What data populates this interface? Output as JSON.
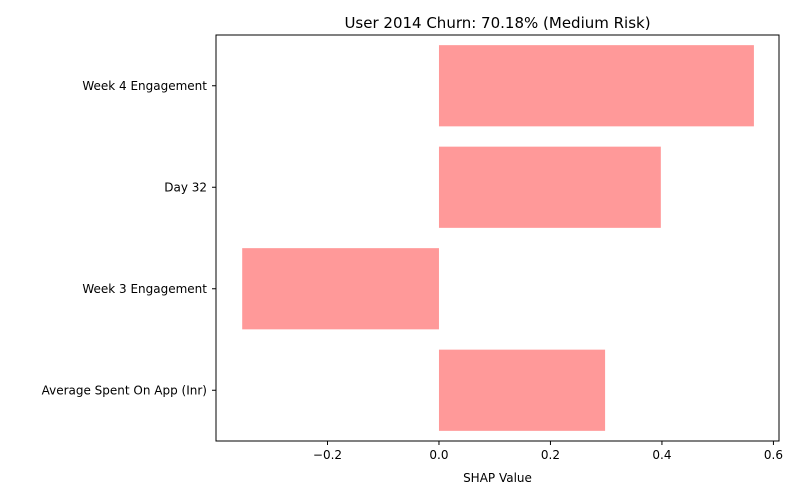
{
  "chart_data": {
    "type": "bar",
    "orientation": "horizontal",
    "title": "User 2014 Churn: 70.18% (Medium Risk)",
    "xlabel": "SHAP Value",
    "ylabel": "",
    "categories": [
      "Week 4 Engagement",
      "Day 32",
      "Week 3 Engagement",
      "Average Spent On App (Inr)"
    ],
    "values": [
      0.565,
      0.398,
      -0.353,
      0.298
    ],
    "xlim": [
      -0.4,
      0.61
    ],
    "xticks": [
      -0.2,
      0.0,
      0.2,
      0.4,
      0.6
    ],
    "xtick_labels": [
      "−0.2",
      "0.0",
      "0.2",
      "0.4",
      "0.6"
    ],
    "bar_color": "#ff9999",
    "grid": false,
    "legend": "none"
  }
}
